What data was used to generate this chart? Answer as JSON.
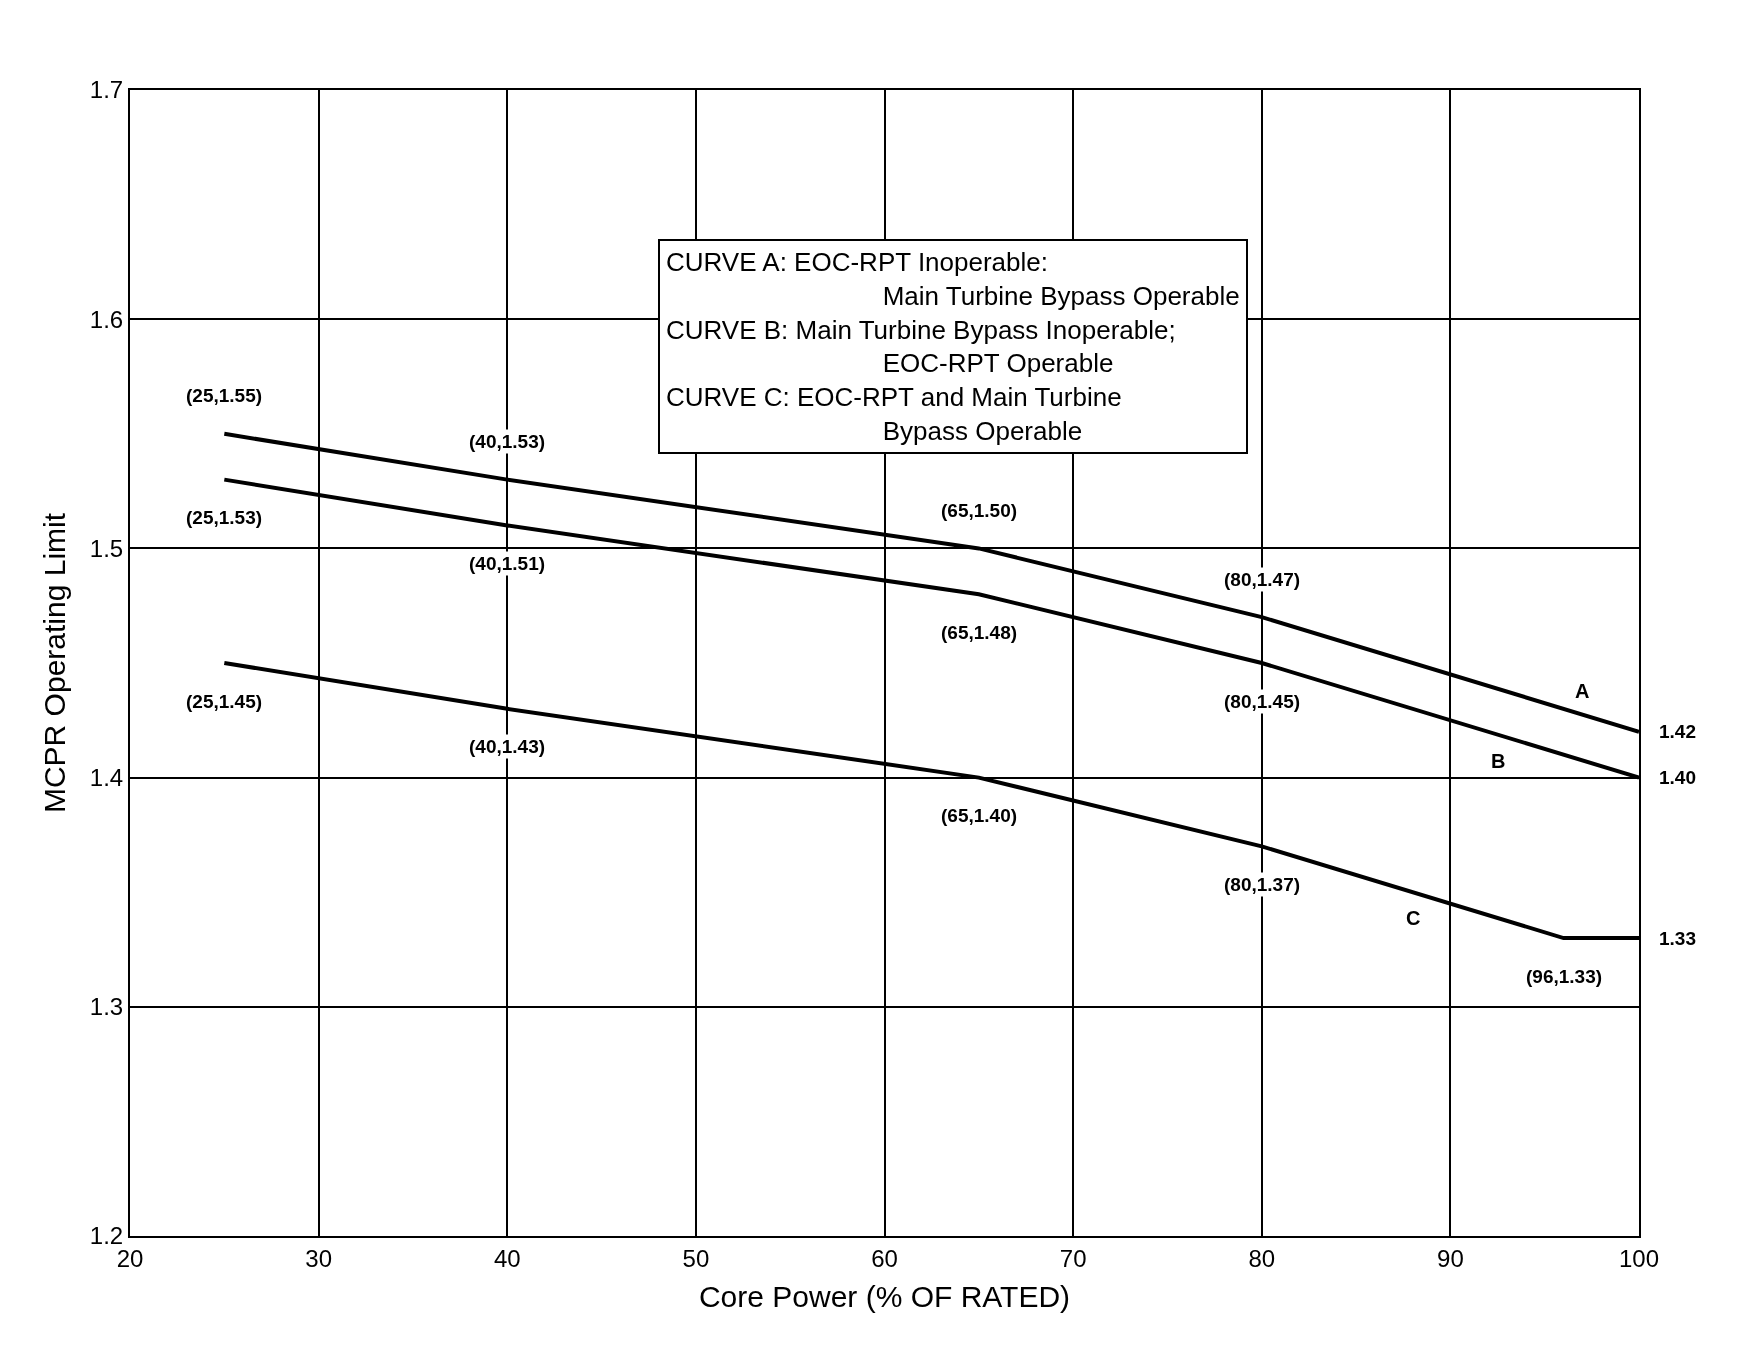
{
  "chart_data": {
    "type": "line",
    "xlabel": "Core Power (% OF RATED)",
    "ylabel": "MCPR Operating Limit",
    "xlim": [
      20,
      100
    ],
    "ylim": [
      1.2,
      1.7
    ],
    "xticks": [
      20,
      30,
      40,
      50,
      60,
      70,
      80,
      90,
      100
    ],
    "yticks": [
      1.2,
      1.3,
      1.4,
      1.5,
      1.6,
      1.7
    ],
    "grid": true,
    "legend": false,
    "marker": "none",
    "line_style": "solid",
    "series": [
      {
        "name": "A",
        "color": "#000000",
        "x": [
          25,
          40,
          65,
          80,
          100
        ],
        "values": [
          1.55,
          1.53,
          1.5,
          1.47,
          1.42
        ]
      },
      {
        "name": "B",
        "color": "#000000",
        "x": [
          25,
          40,
          65,
          80,
          100
        ],
        "values": [
          1.53,
          1.51,
          1.48,
          1.45,
          1.4
        ]
      },
      {
        "name": "C",
        "color": "#000000",
        "x": [
          25,
          40,
          65,
          80,
          96,
          100
        ],
        "values": [
          1.45,
          1.43,
          1.4,
          1.37,
          1.33,
          1.33
        ]
      }
    ],
    "annotations": [
      "CURVE A: EOC-RPT Inoperable:\n                 Main Turbine Bypass Operable\nCURVE B: Main Turbine Bypass Inoperable;\n                 EOC-RPT Operable\nCURVE C: EOC-RPT and Main Turbine\n                 Bypass Operable",
      {
        "text": "(25,1.55)",
        "x": 25,
        "y": 1.55
      },
      {
        "text": "(40,1.53)",
        "x": 40,
        "y": 1.53
      },
      {
        "text": "(65,1.50)",
        "x": 65,
        "y": 1.5
      },
      {
        "text": "(80,1.47)",
        "x": 80,
        "y": 1.47
      },
      {
        "text": "1.42",
        "x": 100,
        "y": 1.42
      },
      {
        "text": "(25,1.53)",
        "x": 25,
        "y": 1.53
      },
      {
        "text": "(40,1.51)",
        "x": 40,
        "y": 1.51
      },
      {
        "text": "(65,1.48)",
        "x": 65,
        "y": 1.48
      },
      {
        "text": "(80,1.45)",
        "x": 80,
        "y": 1.45
      },
      {
        "text": "1.40",
        "x": 100,
        "y": 1.4
      },
      {
        "text": "(25,1.45)",
        "x": 25,
        "y": 1.45
      },
      {
        "text": "(40,1.43)",
        "x": 40,
        "y": 1.43
      },
      {
        "text": "(65,1.40)",
        "x": 65,
        "y": 1.4
      },
      {
        "text": "(80,1.37)",
        "x": 80,
        "y": 1.37
      },
      {
        "text": "(96,1.33)",
        "x": 96,
        "y": 1.33
      },
      {
        "text": "1.33",
        "x": 100,
        "y": 1.33
      }
    ]
  }
}
